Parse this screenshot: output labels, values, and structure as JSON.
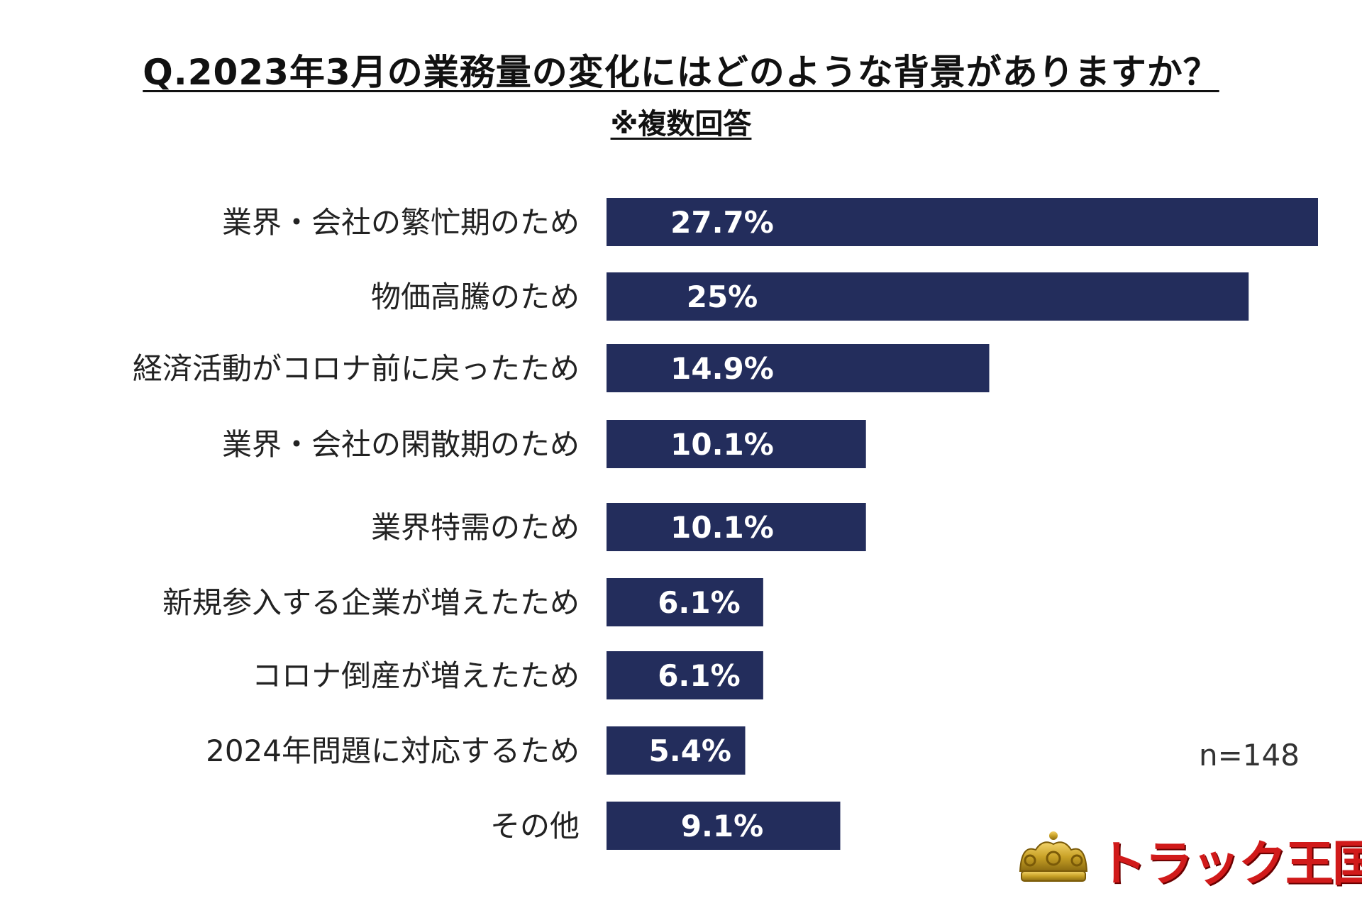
{
  "title": "Q.2023年3月の業務量の変化にはどのような背景がありますか？",
  "subtitle": "※複数回答",
  "sample_size": "n=148",
  "logo": {
    "text": "トラック王国",
    "icon": "crown-icon"
  },
  "colors": {
    "bar": "#232d5c",
    "bar_label": "#ffffff",
    "logo_red": "#d11a1a",
    "crown_gold": "#c9a227"
  },
  "chart_data": {
    "type": "bar",
    "orientation": "horizontal",
    "title": "Q.2023年3月の業務量の変化にはどのような背景がありますか？",
    "subtitle": "※複数回答",
    "categories": [
      "業界・会社の繁忙期のため",
      "物価高騰のため",
      "経済活動がコロナ前に戻ったため",
      "業界・会社の閑散期のため",
      "業界特需のため",
      "新規参入する企業が増えたため",
      "コロナ倒産が増えたため",
      "2024年問題に対応するため",
      "その他"
    ],
    "values": [
      27.7,
      25,
      14.9,
      10.1,
      10.1,
      6.1,
      6.1,
      5.4,
      9.1
    ],
    "value_labels": [
      "27.7%",
      "25%",
      "14.9%",
      "10.1%",
      "10.1%",
      "6.1%",
      "6.1%",
      "5.4%",
      "9.1%"
    ],
    "xlim": [
      0,
      27.7
    ],
    "grid": false,
    "legend": "none"
  }
}
